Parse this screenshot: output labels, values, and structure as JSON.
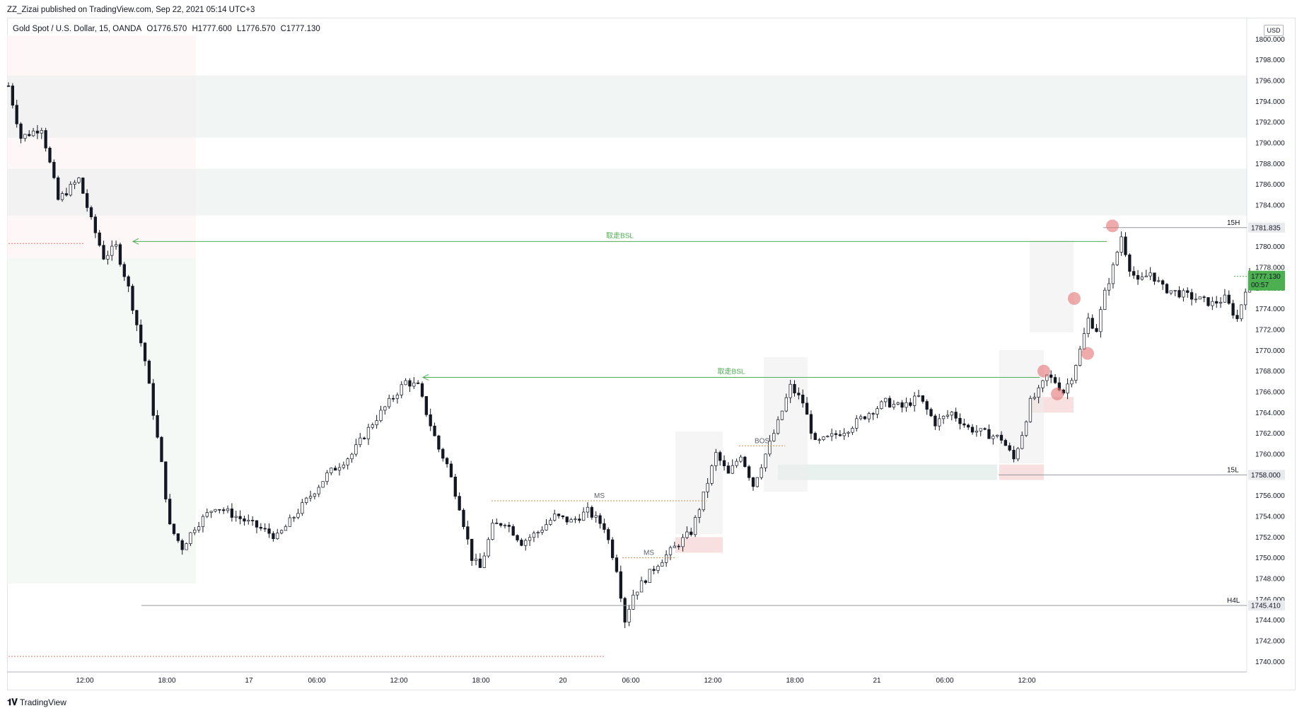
{
  "header": {
    "published": "ZZ_Zizai published on TradingView.com, Sep 22, 2021 05:14 UTC+3"
  },
  "legend": {
    "symbol": "Gold Spot / U.S. Dollar, 15, OANDA",
    "open": "O1776.570",
    "high": "H1777.600",
    "low": "L1776.570",
    "close": "C1777.130"
  },
  "currency_label": "USD",
  "footer": {
    "brand": "TradingView",
    "logo_icon": "tradingview-logo-icon"
  },
  "colors": {
    "up_candle": "#ffffff",
    "down_candle": "#131722",
    "bsl_arrow": "#4caf50",
    "last_price_tag": "#4caf50",
    "liquidity_marker": "#e57373"
  },
  "chart_data": {
    "type": "candlestick",
    "symbol": "Gold Spot / U.S. Dollar",
    "timeframe": "15",
    "exchange": "OANDA",
    "ylim": [
      1739,
      1802
    ],
    "y_ticks": [
      1740,
      1742,
      1744,
      1746,
      1748,
      1750,
      1752,
      1754,
      1756,
      1758,
      1760,
      1762,
      1764,
      1766,
      1768,
      1770,
      1772,
      1774,
      1776,
      1778,
      1780,
      1782,
      1784,
      1786,
      1788,
      1790,
      1792,
      1794,
      1796,
      1798,
      1800
    ],
    "x_ticks": [
      "12:00",
      "18:00",
      "17",
      "06:00",
      "12:00",
      "18:00",
      "20",
      "06:00",
      "12:00",
      "18:00",
      "21",
      "06:00",
      "12:00"
    ],
    "price_path": [
      [
        0,
        1795.5
      ],
      [
        3,
        1790.5
      ],
      [
        8,
        1791.5
      ],
      [
        12,
        1784.5
      ],
      [
        17,
        1786.5
      ],
      [
        20,
        1782.5
      ],
      [
        23,
        1779
      ],
      [
        26,
        1780
      ],
      [
        29,
        1776
      ],
      [
        33,
        1769
      ],
      [
        37,
        1759
      ],
      [
        39,
        1753
      ],
      [
        42,
        1751
      ],
      [
        45,
        1753
      ],
      [
        50,
        1755
      ],
      [
        55,
        1754
      ],
      [
        60,
        1753
      ],
      [
        65,
        1752
      ],
      [
        71,
        1755
      ],
      [
        77,
        1758
      ],
      [
        83,
        1760
      ],
      [
        88,
        1763
      ],
      [
        92,
        1765
      ],
      [
        96,
        1767
      ],
      [
        99,
        1766.5
      ],
      [
        101,
        1764
      ],
      [
        104,
        1760.5
      ],
      [
        106,
        1759
      ],
      [
        109,
        1755
      ],
      [
        112,
        1750
      ],
      [
        114,
        1749
      ],
      [
        117,
        1753
      ],
      [
        120,
        1753.5
      ],
      [
        124,
        1751.5
      ],
      [
        128,
        1752.5
      ],
      [
        132,
        1754
      ],
      [
        136,
        1753.5
      ],
      [
        140,
        1754.5
      ],
      [
        144,
        1753
      ],
      [
        147,
        1749
      ],
      [
        149,
        1744
      ],
      [
        151,
        1746.5
      ],
      [
        154,
        1748
      ],
      [
        157,
        1749.5
      ],
      [
        161,
        1751
      ],
      [
        165,
        1752.5
      ],
      [
        168,
        1756
      ],
      [
        171,
        1760
      ],
      [
        174,
        1758
      ],
      [
        177,
        1760
      ],
      [
        180,
        1757
      ],
      [
        183,
        1760
      ],
      [
        186,
        1763
      ],
      [
        189,
        1766.5
      ],
      [
        192,
        1765
      ],
      [
        195,
        1761
      ],
      [
        198,
        1761.5
      ],
      [
        203,
        1762.5
      ],
      [
        208,
        1764
      ],
      [
        212,
        1765
      ],
      [
        216,
        1764.5
      ],
      [
        220,
        1765.5
      ],
      [
        224,
        1763
      ],
      [
        228,
        1764
      ],
      [
        232,
        1762.5
      ],
      [
        236,
        1762
      ],
      [
        240,
        1761.5
      ],
      [
        243,
        1759.5
      ],
      [
        245,
        1762
      ],
      [
        247,
        1765
      ],
      [
        249,
        1766
      ],
      [
        251,
        1767.5
      ],
      [
        253,
        1767
      ],
      [
        255,
        1766
      ],
      [
        257,
        1767.5
      ],
      [
        259,
        1770
      ],
      [
        261,
        1773
      ],
      [
        263,
        1772
      ],
      [
        265,
        1775.5
      ],
      [
        267,
        1778
      ],
      [
        269,
        1781
      ],
      [
        271,
        1778
      ],
      [
        273,
        1776.5
      ],
      [
        276,
        1777.5
      ],
      [
        279,
        1776
      ],
      [
        283,
        1775.5
      ],
      [
        287,
        1775
      ],
      [
        291,
        1774.5
      ],
      [
        294,
        1775
      ],
      [
        297,
        1773
      ],
      [
        299,
        1776
      ],
      [
        300,
        1777.13
      ]
    ],
    "zones": [
      {
        "kind": "supply",
        "from": 1790.5,
        "to": 1796.5
      },
      {
        "kind": "supply",
        "from": 1783,
        "to": 1787.5
      },
      {
        "kind": "demand",
        "from": 1757.5,
        "to": 1759
      },
      {
        "kind": "order_block",
        "from": 1750.5,
        "to": 1752
      },
      {
        "kind": "order_block",
        "from": 1757.5,
        "to": 1759
      },
      {
        "kind": "order_block",
        "from": 1764,
        "to": 1765.5
      }
    ],
    "levels": [
      {
        "label": "15H",
        "price": 1781.835,
        "price_text": "1781.835"
      },
      {
        "label": "15L",
        "price": 1758.0,
        "price_text": "1758.000"
      },
      {
        "label": "H4L",
        "price": 1745.41,
        "price_text": "1745.410"
      }
    ],
    "last_price": {
      "price": 1777.13,
      "price_text": "1777.130",
      "countdown": "00:57"
    },
    "annotations": [
      {
        "text": "取走BSL",
        "price": 1780.5,
        "kind": "arrow"
      },
      {
        "text": "取走BSL",
        "price": 1767.4,
        "kind": "arrow"
      },
      {
        "text": "MS",
        "price": 1755.5,
        "kind": "dotted"
      },
      {
        "text": "MS",
        "price": 1750,
        "kind": "dotted"
      },
      {
        "text": "BOS",
        "price": 1760.8,
        "kind": "dotted"
      }
    ],
    "liquidity_markers": [
      1782,
      1775,
      1768,
      1765.8,
      1769.7
    ]
  }
}
